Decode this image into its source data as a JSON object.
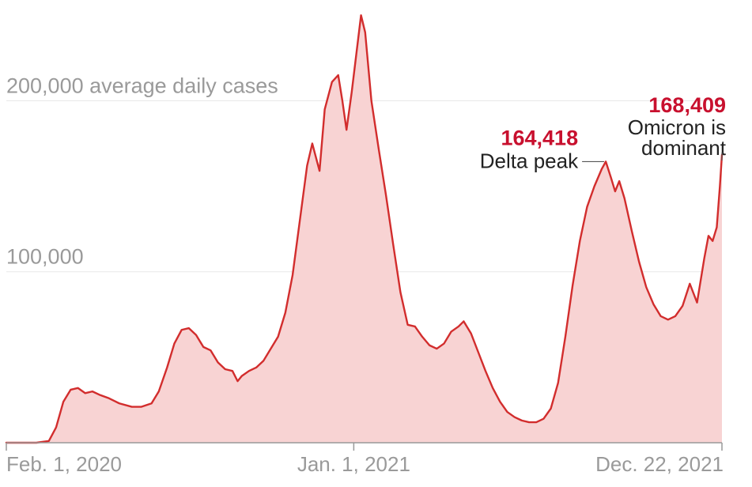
{
  "chart_data": {
    "type": "area",
    "title": "",
    "xlabel": "",
    "ylabel": "",
    "y_unit_label": "average daily cases",
    "ylim": [
      0,
      252000
    ],
    "yticks": [
      {
        "value": 100000,
        "label": "100,000"
      },
      {
        "value": 200000,
        "label": "200,000"
      }
    ],
    "xticks": [
      {
        "date": "2020-02-01",
        "label": "Feb. 1, 2020",
        "anchor": "start"
      },
      {
        "date": "2021-01-01",
        "label": "Jan. 1, 2021",
        "anchor": "middle"
      },
      {
        "date": "2021-12-22",
        "label": "Dec. 22, 2021",
        "anchor": "end"
      }
    ],
    "grid": true,
    "colors": {
      "line": "#d22d2d",
      "fill": "#f8d3d3",
      "annotation": "#c8102e"
    },
    "series": [
      {
        "name": "",
        "points": [
          [
            "2020-02-01",
            0
          ],
          [
            "2020-03-01",
            0
          ],
          [
            "2020-03-13",
            1000
          ],
          [
            "2020-03-20",
            9000
          ],
          [
            "2020-03-27",
            24000
          ],
          [
            "2020-04-03",
            31000
          ],
          [
            "2020-04-10",
            32000
          ],
          [
            "2020-04-17",
            29000
          ],
          [
            "2020-04-24",
            30000
          ],
          [
            "2020-05-01",
            28000
          ],
          [
            "2020-05-10",
            26000
          ],
          [
            "2020-05-20",
            23000
          ],
          [
            "2020-06-01",
            21000
          ],
          [
            "2020-06-10",
            21000
          ],
          [
            "2020-06-20",
            23000
          ],
          [
            "2020-06-27",
            30000
          ],
          [
            "2020-07-05",
            44000
          ],
          [
            "2020-07-12",
            58000
          ],
          [
            "2020-07-19",
            66000
          ],
          [
            "2020-07-26",
            67000
          ],
          [
            "2020-08-02",
            63000
          ],
          [
            "2020-08-09",
            56000
          ],
          [
            "2020-08-16",
            54000
          ],
          [
            "2020-08-23",
            47000
          ],
          [
            "2020-08-30",
            43000
          ],
          [
            "2020-09-06",
            42000
          ],
          [
            "2020-09-11",
            36000
          ],
          [
            "2020-09-15",
            39000
          ],
          [
            "2020-09-22",
            42000
          ],
          [
            "2020-09-29",
            44000
          ],
          [
            "2020-10-06",
            48000
          ],
          [
            "2020-10-13",
            55000
          ],
          [
            "2020-10-20",
            62000
          ],
          [
            "2020-10-27",
            76000
          ],
          [
            "2020-11-03",
            98000
          ],
          [
            "2020-11-10",
            130000
          ],
          [
            "2020-11-17",
            162000
          ],
          [
            "2020-11-22",
            175000
          ],
          [
            "2020-11-29",
            159000
          ],
          [
            "2020-12-04",
            195000
          ],
          [
            "2020-12-11",
            211000
          ],
          [
            "2020-12-17",
            215000
          ],
          [
            "2020-12-21",
            200000
          ],
          [
            "2020-12-25",
            183000
          ],
          [
            "2020-12-30",
            205000
          ],
          [
            "2021-01-04",
            230000
          ],
          [
            "2021-01-08",
            250000
          ],
          [
            "2021-01-12",
            240000
          ],
          [
            "2021-01-18",
            200000
          ],
          [
            "2021-01-25",
            172000
          ],
          [
            "2021-02-01",
            145000
          ],
          [
            "2021-02-08",
            116000
          ],
          [
            "2021-02-15",
            88000
          ],
          [
            "2021-02-22",
            69000
          ],
          [
            "2021-03-01",
            68000
          ],
          [
            "2021-03-08",
            62000
          ],
          [
            "2021-03-15",
            57000
          ],
          [
            "2021-03-22",
            55000
          ],
          [
            "2021-03-29",
            58000
          ],
          [
            "2021-04-05",
            65000
          ],
          [
            "2021-04-12",
            68000
          ],
          [
            "2021-04-17",
            71000
          ],
          [
            "2021-04-24",
            64000
          ],
          [
            "2021-05-01",
            53000
          ],
          [
            "2021-05-08",
            42000
          ],
          [
            "2021-05-15",
            32000
          ],
          [
            "2021-05-22",
            24000
          ],
          [
            "2021-05-29",
            18000
          ],
          [
            "2021-06-05",
            15000
          ],
          [
            "2021-06-12",
            13000
          ],
          [
            "2021-06-19",
            12000
          ],
          [
            "2021-06-26",
            12000
          ],
          [
            "2021-07-03",
            14000
          ],
          [
            "2021-07-10",
            20000
          ],
          [
            "2021-07-17",
            35000
          ],
          [
            "2021-07-24",
            62000
          ],
          [
            "2021-07-31",
            92000
          ],
          [
            "2021-08-07",
            118000
          ],
          [
            "2021-08-14",
            138000
          ],
          [
            "2021-08-21",
            150000
          ],
          [
            "2021-08-28",
            160000
          ],
          [
            "2021-09-01",
            164418
          ],
          [
            "2021-09-06",
            155000
          ],
          [
            "2021-09-10",
            147000
          ],
          [
            "2021-09-14",
            153000
          ],
          [
            "2021-09-19",
            143000
          ],
          [
            "2021-09-26",
            124000
          ],
          [
            "2021-10-03",
            106000
          ],
          [
            "2021-10-10",
            91000
          ],
          [
            "2021-10-17",
            81000
          ],
          [
            "2021-10-24",
            74000
          ],
          [
            "2021-10-31",
            72000
          ],
          [
            "2021-11-07",
            74000
          ],
          [
            "2021-11-14",
            80000
          ],
          [
            "2021-11-21",
            93000
          ],
          [
            "2021-11-28",
            82000
          ],
          [
            "2021-12-05",
            108000
          ],
          [
            "2021-12-09",
            121000
          ],
          [
            "2021-12-13",
            118000
          ],
          [
            "2021-12-17",
            126000
          ],
          [
            "2021-12-20",
            150000
          ],
          [
            "2021-12-22",
            168409
          ]
        ]
      }
    ],
    "annotations": [
      {
        "value": "164,418",
        "text": [
          "Delta peak"
        ],
        "date": "2021-09-01",
        "y": 164418
      },
      {
        "value": "168,409",
        "text": [
          "Omicron is",
          "dominant"
        ],
        "date": "2021-12-22",
        "y": 168409
      }
    ]
  }
}
